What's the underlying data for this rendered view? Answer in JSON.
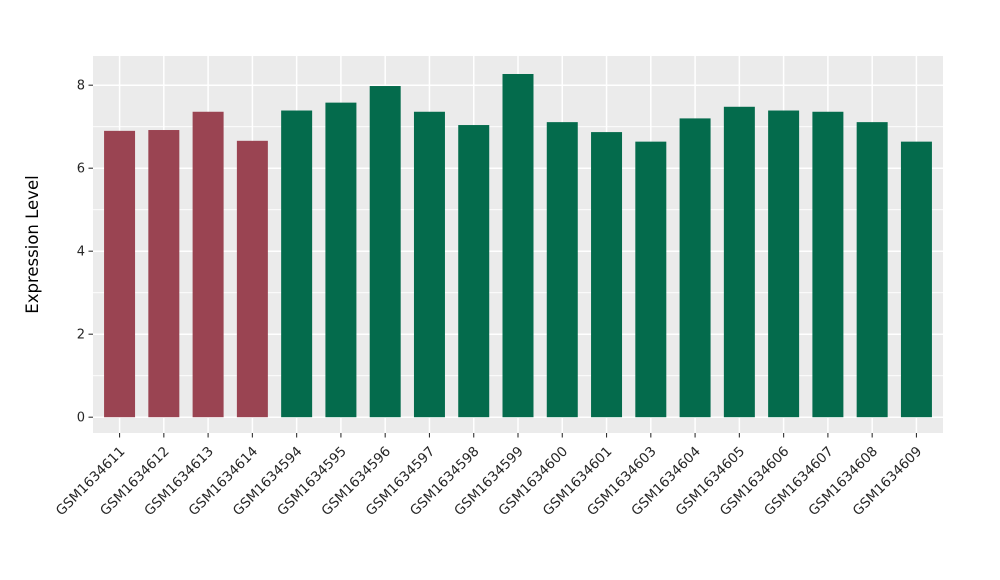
{
  "chart_data": {
    "type": "bar",
    "title": "",
    "ylabel": "Expression Level",
    "xlabel": "",
    "categories": [
      "GSM1634611",
      "GSM1634612",
      "GSM1634613",
      "GSM1634614",
      "GSM1634594",
      "GSM1634595",
      "GSM1634596",
      "GSM1634597",
      "GSM1634598",
      "GSM1634599",
      "GSM1634600",
      "GSM1634601",
      "GSM1634603",
      "GSM1634604",
      "GSM1634605",
      "GSM1634606",
      "GSM1634607",
      "GSM1634608",
      "GSM1634609"
    ],
    "values": [
      6.9,
      6.92,
      7.36,
      6.66,
      7.39,
      7.58,
      7.98,
      7.36,
      7.04,
      8.27,
      7.11,
      6.87,
      6.64,
      7.2,
      7.48,
      7.39,
      7.36,
      7.11,
      6.64
    ],
    "bar_groups": [
      0,
      0,
      0,
      0,
      1,
      1,
      1,
      1,
      1,
      1,
      1,
      1,
      1,
      1,
      1,
      1,
      1,
      1,
      1
    ],
    "group_colors": [
      "#9A4452",
      "#046B4C"
    ],
    "yticks": [
      0,
      2,
      4,
      6,
      8
    ],
    "minor_yticks": [
      1,
      3,
      5,
      7
    ],
    "ylim": [
      0,
      8.7
    ],
    "bar_width_frac": 0.7,
    "grid": true,
    "legend": false,
    "panel_bg": "#EBEBEB",
    "grid_color": "#FFFFFF",
    "tick_color": "#333333",
    "axis_text_color": "#262626",
    "axis_title_color": "#000000",
    "background": "#FFFFFF"
  }
}
